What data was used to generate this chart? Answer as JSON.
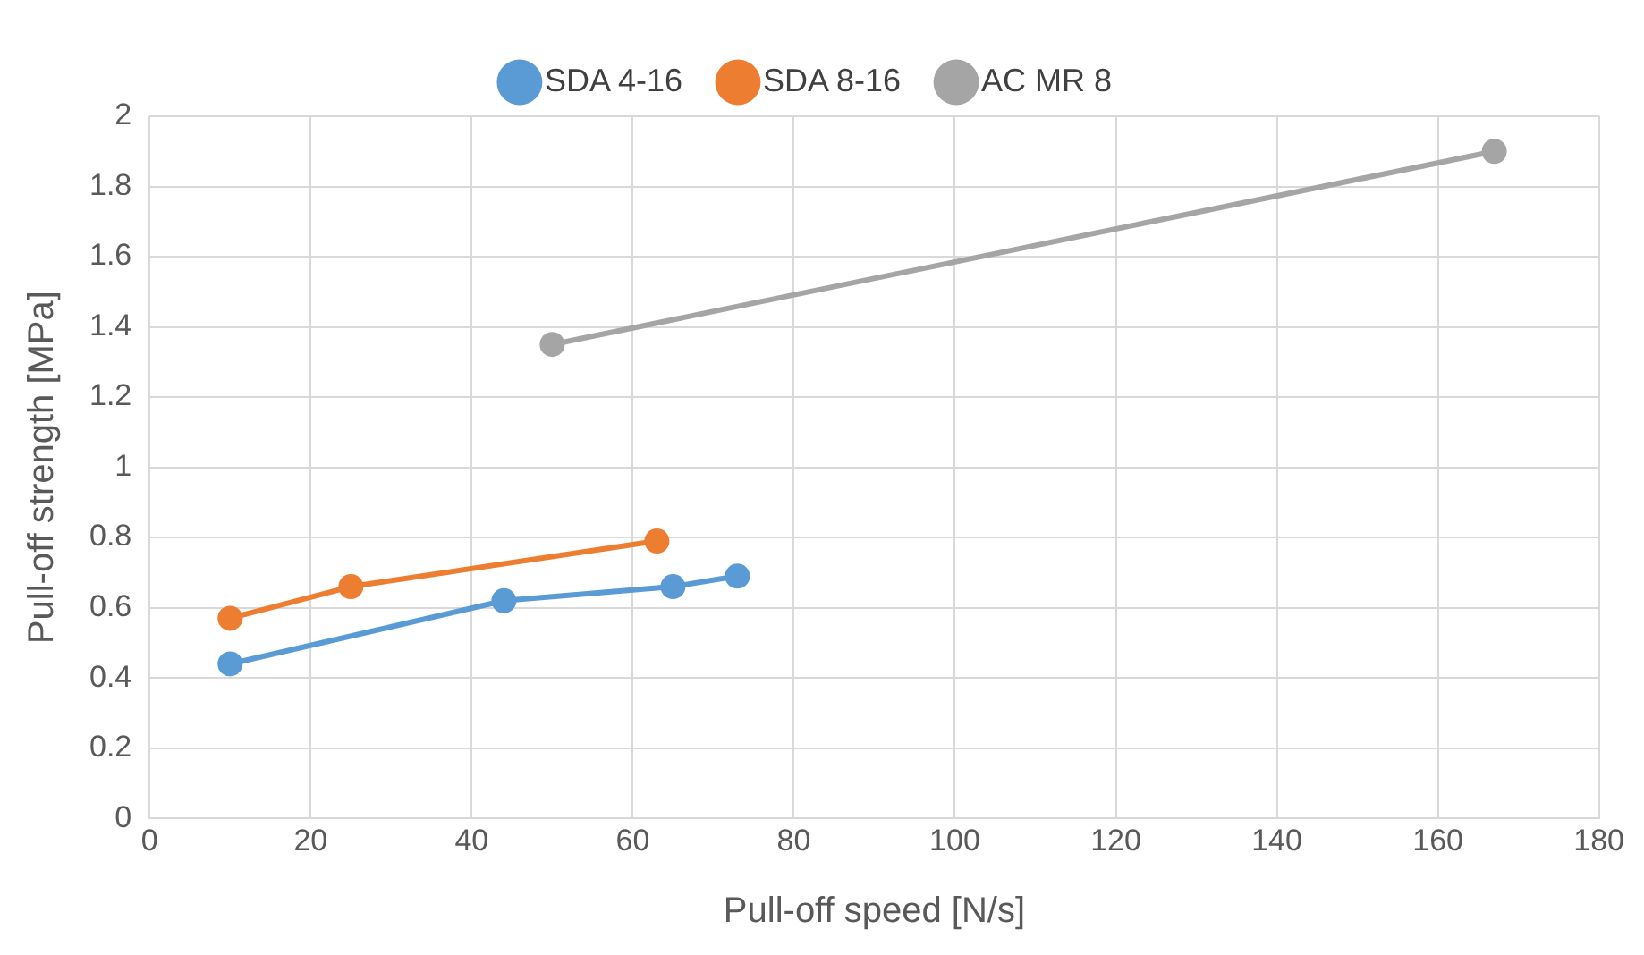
{
  "chart_data": {
    "type": "line",
    "xlabel": "Pull-off speed [N/s]",
    "ylabel": "Pull-off strength [MPa]",
    "xlim": [
      0,
      180
    ],
    "xticks": [
      0,
      20,
      40,
      60,
      80,
      100,
      120,
      140,
      160,
      180
    ],
    "ylim": [
      0,
      2
    ],
    "yticks": [
      0,
      {
        "value": 0.2,
        "label": "0.2"
      },
      {
        "value": 0.4,
        "label": "0.4"
      },
      {
        "value": 0.6,
        "label": "0.6"
      },
      {
        "value": 0.8,
        "label": "0.8"
      },
      1,
      {
        "value": 1.2,
        "label": "1.2"
      },
      {
        "value": 1.4,
        "label": "1.4"
      },
      {
        "value": 1.6,
        "label": "1.6"
      },
      {
        "value": 1.8,
        "label": "1.8"
      },
      2
    ],
    "grid": true,
    "legend": "top",
    "marker": "circle",
    "line_style": "solid",
    "series": [
      {
        "name": "SDA 4-16",
        "color": "#5b9bd5",
        "x": [
          10,
          44,
          65,
          73
        ],
        "values": [
          0.44,
          0.62,
          0.66,
          0.69
        ]
      },
      {
        "name": "SDA 8-16",
        "color": "#ed7d31",
        "x": [
          10,
          25,
          63
        ],
        "values": [
          0.57,
          0.66,
          0.79
        ]
      },
      {
        "name": "AC MR 8",
        "color": "#a5a5a5",
        "x": [
          50,
          167
        ],
        "values": [
          1.35,
          1.9
        ]
      }
    ]
  }
}
